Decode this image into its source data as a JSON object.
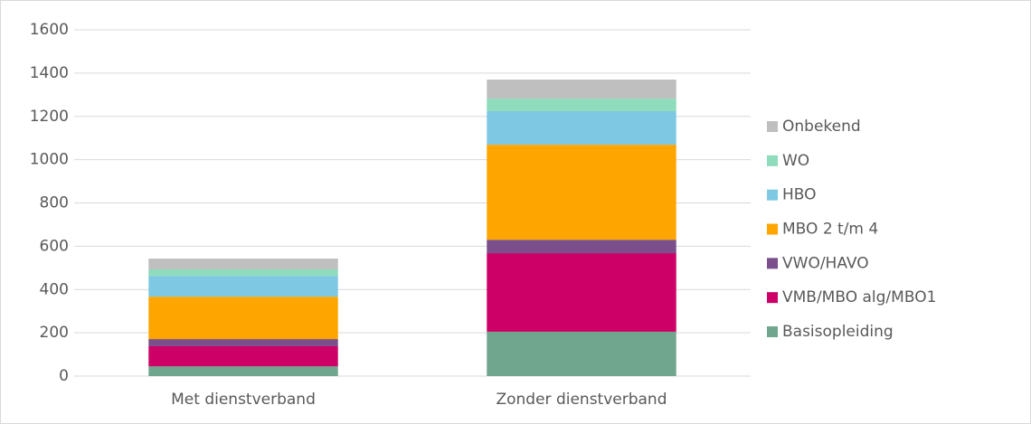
{
  "chart_data": {
    "type": "stacked_bar",
    "categories": [
      "Met dienstverband",
      "Zonder dienstverband"
    ],
    "series": [
      {
        "name": "Basisopleiding",
        "color": "#70a68e",
        "values": [
          45,
          205
        ]
      },
      {
        "name": "VMB/MBO alg/MBO1",
        "color": "#cc0066",
        "values": [
          93,
          363
        ]
      },
      {
        "name": "VWO/HAVO",
        "color": "#7a4f8c",
        "values": [
          33,
          62
        ]
      },
      {
        "name": "MBO 2 t/m 4",
        "color": "#ffa500",
        "values": [
          196,
          439
        ]
      },
      {
        "name": "HBO",
        "color": "#7ec8e3",
        "values": [
          96,
          155
        ]
      },
      {
        "name": "WO",
        "color": "#8fdcbc",
        "values": [
          30,
          58
        ]
      },
      {
        "name": "Onbekend",
        "color": "#bfbfbf",
        "values": [
          50,
          88
        ]
      }
    ],
    "ylim": [
      0,
      1600
    ],
    "yticks": [
      0,
      200,
      400,
      600,
      800,
      1000,
      1200,
      1400,
      1600
    ],
    "grid": true,
    "legend": "right"
  }
}
